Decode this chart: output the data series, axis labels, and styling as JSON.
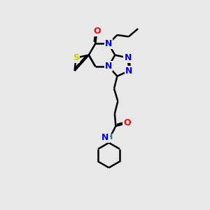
{
  "bg_color": "#e8e8e8",
  "atom_colors": {
    "S": "#cccc00",
    "N": "#0000ee",
    "O": "#ff0000",
    "NH": "#008080",
    "C": "#000000"
  },
  "bond_color": "#000000",
  "bond_width": 1.8,
  "figsize": [
    3.0,
    3.0
  ],
  "dpi": 100
}
